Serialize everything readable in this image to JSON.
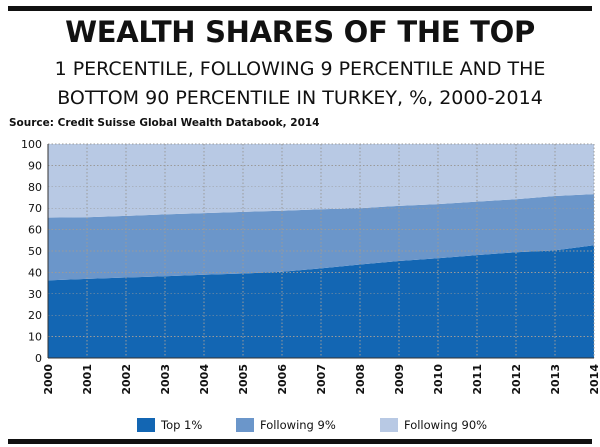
{
  "header": {
    "title": "WEALTH SHARES OF THE TOP",
    "subtitle_line1": "1 PERCENTILE, FOLLOWING 9 PERCENTILE AND THE",
    "subtitle_line2": "BOTTOM 90 PERCENTILE IN TURKEY, %, 2000-2014",
    "source": "Source: Credit Suisse Global Wealth Databook, 2014"
  },
  "colors": {
    "top1": "#1366b3",
    "following9": "#6b96ca",
    "following90": "#b8c9e4",
    "grid": "#9a9a9a"
  },
  "chart_data": {
    "type": "area",
    "stacked": true,
    "x": [
      "2000",
      "2001",
      "2002",
      "2003",
      "2004",
      "2005",
      "2006",
      "2007",
      "2008",
      "2009",
      "2010",
      "2011",
      "2012",
      "2013",
      "2014"
    ],
    "yticks": [
      "0",
      "10",
      "20",
      "30",
      "40",
      "50",
      "60",
      "70",
      "80",
      "90",
      "100"
    ],
    "ylim": [
      0,
      100
    ],
    "grid": true,
    "legend_position": "bottom",
    "series": [
      {
        "name": "Top 1%",
        "color": "#1366b3",
        "values": [
          36.3,
          37.0,
          37.6,
          38.2,
          38.9,
          39.5,
          40.3,
          41.9,
          43.7,
          45.3,
          46.6,
          48.1,
          49.4,
          50.3,
          52.7
        ]
      },
      {
        "name": "Following 9%",
        "color": "#6b96ca",
        "values": [
          29.3,
          28.8,
          28.8,
          28.9,
          28.8,
          28.8,
          28.5,
          27.6,
          26.3,
          25.8,
          25.3,
          25.0,
          24.8,
          25.4,
          23.9
        ]
      },
      {
        "name": "Following 90%",
        "color": "#b8c9e4",
        "values": [
          34.4,
          34.2,
          33.6,
          32.9,
          32.3,
          31.7,
          31.2,
          30.5,
          30.0,
          28.9,
          28.1,
          26.9,
          25.8,
          24.3,
          23.4
        ]
      }
    ]
  }
}
